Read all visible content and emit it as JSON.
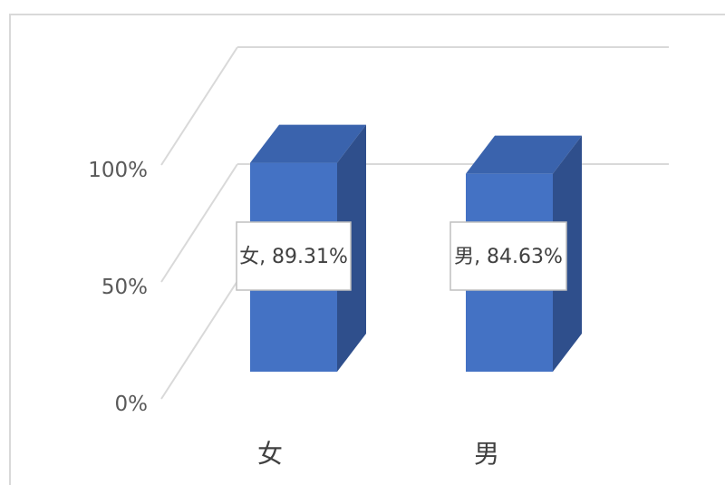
{
  "chart_data": {
    "type": "bar",
    "title": "",
    "xlabel": "",
    "ylabel": "",
    "categories": [
      "女",
      "男"
    ],
    "values": [
      0.8931,
      0.8463
    ],
    "data_labels": [
      "女, 89.31%",
      "男, 84.63%"
    ],
    "y_ticks": [
      "0%",
      "50%",
      "100%"
    ],
    "ylim": [
      0,
      1
    ],
    "grid": true,
    "legend": "none",
    "style": "3d-column",
    "colors": {
      "bar_front": "#4472c4",
      "bar_top": "#3a63ad",
      "bar_side": "#2f4f8c",
      "grid": "#d9d9d9",
      "frame": "#d9d9d9"
    }
  }
}
